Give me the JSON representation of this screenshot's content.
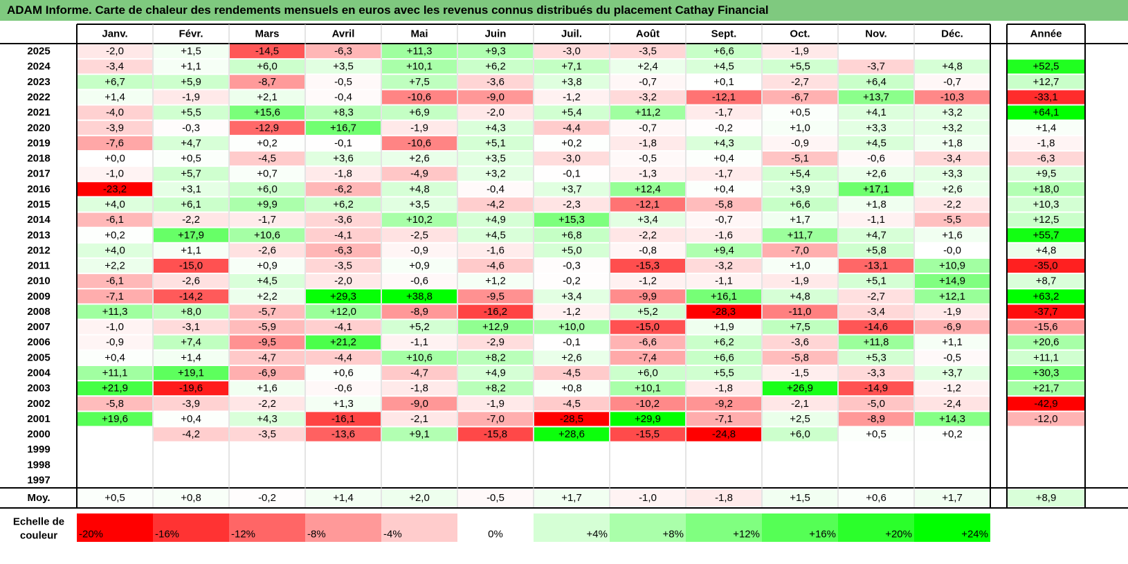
{
  "title": "ADAM Informe. Carte de chaleur des rendements mensuels en euros avec les revenus connus distribués du placement Cathay Financial",
  "chart_data": {
    "type": "heatmap",
    "months": [
      "Janv.",
      "Févr.",
      "Mars",
      "Avril",
      "Mai",
      "Juin",
      "Juil.",
      "Août",
      "Sept.",
      "Oct.",
      "Nov.",
      "Déc."
    ],
    "year_header": "Année",
    "rows": [
      {
        "year": "2025",
        "months": [
          "-2,0",
          "+1,5",
          "-14,5",
          "-6,3",
          "+11,3",
          "+9,3",
          "-3,0",
          "-3,5",
          "+6,6",
          "-1,9",
          "",
          ""
        ],
        "annual": ""
      },
      {
        "year": "2024",
        "months": [
          "-3,4",
          "+1,1",
          "+6,0",
          "+3,5",
          "+10,1",
          "+6,2",
          "+7,1",
          "+2,4",
          "+4,5",
          "+5,5",
          "-3,7",
          "+4,8"
        ],
        "annual": "+52,5"
      },
      {
        "year": "2023",
        "months": [
          "+6,7",
          "+5,9",
          "-8,7",
          "-0,5",
          "+7,5",
          "-3,6",
          "+3,8",
          "-0,7",
          "+0,1",
          "-2,7",
          "+6,4",
          "-0,7"
        ],
        "annual": "+12,7"
      },
      {
        "year": "2022",
        "months": [
          "+1,4",
          "-1,9",
          "+2,1",
          "-0,4",
          "-10,6",
          "-9,0",
          "-1,2",
          "-3,2",
          "-12,1",
          "-6,7",
          "+13,7",
          "-10,3"
        ],
        "annual": "-33,1"
      },
      {
        "year": "2021",
        "months": [
          "-4,0",
          "+5,5",
          "+15,6",
          "+8,3",
          "+6,9",
          "-2,0",
          "+5,4",
          "+11,2",
          "-1,7",
          "+0,5",
          "+4,1",
          "+3,2"
        ],
        "annual": "+64,1"
      },
      {
        "year": "2020",
        "months": [
          "-3,9",
          "-0,3",
          "-12,9",
          "+16,7",
          "-1,9",
          "+4,3",
          "-4,4",
          "-0,7",
          "-0,2",
          "+1,0",
          "+3,3",
          "+3,2"
        ],
        "annual": "+1,4"
      },
      {
        "year": "2019",
        "months": [
          "-7,6",
          "+4,7",
          "+0,2",
          "-0,1",
          "-10,6",
          "+5,1",
          "+0,2",
          "-1,8",
          "+4,3",
          "-0,9",
          "+4,5",
          "+1,8"
        ],
        "annual": "-1,8"
      },
      {
        "year": "2018",
        "months": [
          "+0,0",
          "+0,5",
          "-4,5",
          "+3,6",
          "+2,6",
          "+3,5",
          "-3,0",
          "-0,5",
          "+0,4",
          "-5,1",
          "-0,6",
          "-3,4"
        ],
        "annual": "-6,3"
      },
      {
        "year": "2017",
        "months": [
          "-1,0",
          "+5,7",
          "+0,7",
          "-1,8",
          "-4,9",
          "+3,2",
          "-0,1",
          "-1,3",
          "-1,7",
          "+5,4",
          "+2,6",
          "+3,3"
        ],
        "annual": "+9,5"
      },
      {
        "year": "2016",
        "months": [
          "-23,2",
          "+3,1",
          "+6,0",
          "-6,2",
          "+4,8",
          "-0,4",
          "+3,7",
          "+12,4",
          "+0,4",
          "+3,9",
          "+17,1",
          "+2,6"
        ],
        "annual": "+18,0"
      },
      {
        "year": "2015",
        "months": [
          "+4,0",
          "+6,1",
          "+9,9",
          "+6,2",
          "+3,5",
          "-4,2",
          "-2,3",
          "-12,1",
          "-5,8",
          "+6,6",
          "+1,8",
          "-2,2"
        ],
        "annual": "+10,3"
      },
      {
        "year": "2014",
        "months": [
          "-6,1",
          "-2,2",
          "-1,7",
          "-3,6",
          "+10,2",
          "+4,9",
          "+15,3",
          "+3,4",
          "-0,7",
          "+1,7",
          "-1,1",
          "-5,5"
        ],
        "annual": "+12,5"
      },
      {
        "year": "2013",
        "months": [
          "+0,2",
          "+17,9",
          "+10,6",
          "-4,1",
          "-2,5",
          "+4,5",
          "+6,8",
          "-2,2",
          "-1,6",
          "+11,7",
          "+4,7",
          "+1,6"
        ],
        "annual": "+55,7"
      },
      {
        "year": "2012",
        "months": [
          "+4,0",
          "+1,1",
          "-2,6",
          "-6,3",
          "-0,9",
          "-1,6",
          "+5,0",
          "-0,8",
          "+9,4",
          "-7,0",
          "+5,8",
          "-0,0"
        ],
        "annual": "+4,8"
      },
      {
        "year": "2011",
        "months": [
          "+2,2",
          "-15,0",
          "+0,9",
          "-3,5",
          "+0,9",
          "-4,6",
          "-0,3",
          "-15,3",
          "-3,2",
          "+1,0",
          "-13,1",
          "+10,9"
        ],
        "annual": "-35,0"
      },
      {
        "year": "2010",
        "months": [
          "-6,1",
          "-2,6",
          "+4,5",
          "-2,0",
          "-0,6",
          "+1,2",
          "-0,2",
          "-1,2",
          "-1,1",
          "-1,9",
          "+5,1",
          "+14,9"
        ],
        "annual": "+8,7"
      },
      {
        "year": "2009",
        "months": [
          "-7,1",
          "-14,2",
          "+2,2",
          "+29,3",
          "+38,8",
          "-9,5",
          "+3,4",
          "-9,9",
          "+16,1",
          "+4,8",
          "-2,7",
          "+12,1"
        ],
        "annual": "+63,2"
      },
      {
        "year": "2008",
        "months": [
          "+11,3",
          "+8,0",
          "-5,7",
          "+12,0",
          "-8,9",
          "-16,2",
          "-1,2",
          "+5,2",
          "-28,3",
          "-11,0",
          "-3,4",
          "-1,9"
        ],
        "annual": "-37,7"
      },
      {
        "year": "2007",
        "months": [
          "-1,0",
          "-3,1",
          "-5,9",
          "-4,1",
          "+5,2",
          "+12,9",
          "+10,0",
          "-15,0",
          "+1,9",
          "+7,5",
          "-14,6",
          "-6,9"
        ],
        "annual": "-15,6"
      },
      {
        "year": "2006",
        "months": [
          "-0,9",
          "+7,4",
          "-9,5",
          "+21,2",
          "-1,1",
          "-2,9",
          "-0,1",
          "-6,6",
          "+6,2",
          "-3,6",
          "+11,8",
          "+1,1"
        ],
        "annual": "+20,6"
      },
      {
        "year": "2005",
        "months": [
          "+0,4",
          "+1,4",
          "-4,7",
          "-4,4",
          "+10,6",
          "+8,2",
          "+2,6",
          "-7,4",
          "+6,6",
          "-5,8",
          "+5,3",
          "-0,5"
        ],
        "annual": "+11,1"
      },
      {
        "year": "2004",
        "months": [
          "+11,1",
          "+19,1",
          "-6,9",
          "+0,6",
          "-4,7",
          "+4,9",
          "-4,5",
          "+6,0",
          "+5,5",
          "-1,5",
          "-3,3",
          "+3,7"
        ],
        "annual": "+30,3"
      },
      {
        "year": "2003",
        "months": [
          "+21,9",
          "-19,6",
          "+1,6",
          "-0,6",
          "-1,8",
          "+8,2",
          "+0,8",
          "+10,1",
          "-1,8",
          "+26,9",
          "-14,9",
          "-1,2"
        ],
        "annual": "+21,7"
      },
      {
        "year": "2002",
        "months": [
          "-5,8",
          "-3,9",
          "-2,2",
          "+1,3",
          "-9,0",
          "-1,9",
          "-4,5",
          "-10,2",
          "-9,2",
          "-2,1",
          "-5,0",
          "-2,4"
        ],
        "annual": "-42,9"
      },
      {
        "year": "2001",
        "months": [
          "+19,6",
          "+0,4",
          "+4,3",
          "-16,1",
          "-2,1",
          "-7,0",
          "-28,5",
          "+29,9",
          "-7,1",
          "+2,5",
          "-8,9",
          "+14,3"
        ],
        "annual": "-12,0"
      },
      {
        "year": "2000",
        "months": [
          "",
          "-4,2",
          "-3,5",
          "-13,6",
          "+9,1",
          "-15,8",
          "+28,6",
          "-15,5",
          "-24,8",
          "+6,0",
          "+0,5",
          "+0,2"
        ],
        "annual": ""
      },
      {
        "year": "1999",
        "months": [
          "",
          "",
          "",
          "",
          "",
          "",
          "",
          "",
          "",
          "",
          "",
          ""
        ],
        "annual": ""
      },
      {
        "year": "1998",
        "months": [
          "",
          "",
          "",
          "",
          "",
          "",
          "",
          "",
          "",
          "",
          "",
          ""
        ],
        "annual": ""
      },
      {
        "year": "1997",
        "months": [
          "",
          "",
          "",
          "",
          "",
          "",
          "",
          "",
          "",
          "",
          "",
          ""
        ],
        "annual": ""
      }
    ],
    "average": {
      "label": "Moy.",
      "months": [
        "+0,5",
        "+0,8",
        "-0,2",
        "+1,4",
        "+2,0",
        "-0,5",
        "+1,7",
        "-1,0",
        "-1,8",
        "+1,5",
        "+0,6",
        "+1,7"
      ],
      "annual": "+8,9"
    },
    "scale": {
      "label_line1": "Echelle de",
      "label_line2": "couleur",
      "stops": [
        "-20%",
        "-16%",
        "-12%",
        "-8%",
        "-4%",
        "0%",
        "+4%",
        "+8%",
        "+12%",
        "+16%",
        "+20%",
        "+24%"
      ]
    },
    "colors": {
      "negative_max": "#ff0000",
      "positive_max": "#00ff00",
      "neutral": "#ffffff",
      "title_bg": "#7fc97f"
    }
  }
}
